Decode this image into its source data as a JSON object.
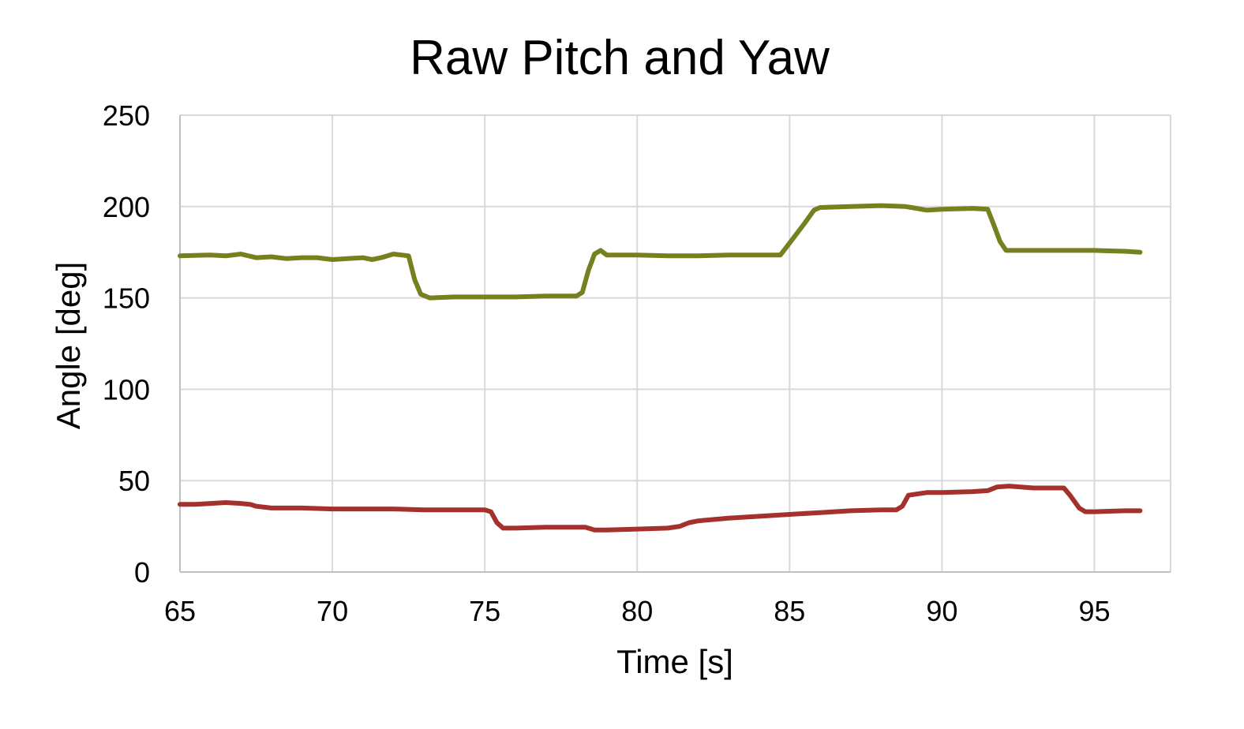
{
  "chart_data": {
    "type": "line",
    "title": "Raw Pitch and Yaw",
    "xlabel": "Time [s]",
    "ylabel": "Angle [deg]",
    "xlim": [
      65,
      97.5
    ],
    "ylim": [
      0,
      250
    ],
    "xticks": [
      65,
      70,
      75,
      80,
      85,
      90,
      95
    ],
    "yticks": [
      0,
      50,
      100,
      150,
      200,
      250
    ],
    "grid": true,
    "legend": "none",
    "series": [
      {
        "color": "#76801e",
        "x": [
          65,
          66,
          66.5,
          67,
          67.5,
          68,
          68.5,
          69,
          69.5,
          70,
          70.5,
          71,
          71.3,
          71.6,
          72,
          72.5,
          72.7,
          72.9,
          73.2,
          74,
          75,
          76,
          77,
          78,
          78.2,
          78.4,
          78.6,
          78.8,
          79,
          80,
          81,
          82,
          83,
          84,
          84.7,
          85,
          85.5,
          85.8,
          86,
          87,
          88,
          88.8,
          89,
          89.5,
          90,
          91,
          91.5,
          91.7,
          91.9,
          92.1,
          92.5,
          93,
          94,
          95,
          96,
          96.5
        ],
        "y": [
          173,
          173.5,
          173,
          174,
          172,
          172.5,
          171.5,
          172,
          172,
          171,
          171.5,
          172,
          171,
          172,
          174,
          173,
          160,
          152,
          150,
          150.5,
          150.5,
          150.5,
          151,
          151,
          153,
          165,
          174,
          176,
          173.5,
          173.5,
          173,
          173,
          173.5,
          173.5,
          173.5,
          180,
          191,
          198,
          199.5,
          200,
          200.5,
          200,
          199.5,
          198,
          198.5,
          199,
          198.5,
          190,
          181,
          176,
          176,
          176,
          176,
          176,
          175.5,
          175
        ]
      },
      {
        "color": "#a5312c",
        "x": [
          65,
          65.5,
          66,
          66.5,
          67,
          67.3,
          67.5,
          68,
          69,
          70,
          71,
          72,
          73,
          74,
          75,
          75.2,
          75.4,
          75.6,
          76,
          77,
          78,
          78.3,
          78.6,
          79,
          80,
          81,
          81.4,
          81.7,
          82,
          83,
          84,
          85,
          86,
          87,
          88,
          88.5,
          88.7,
          88.9,
          89.5,
          90,
          91,
          91.5,
          91.8,
          92.2,
          93,
          94,
          94.2,
          94.5,
          94.7,
          95,
          96,
          96.5
        ],
        "y": [
          37,
          37,
          37.5,
          38,
          37.5,
          37,
          36,
          35,
          35,
          34.5,
          34.5,
          34.5,
          34,
          34,
          34,
          33,
          27,
          24,
          24,
          24.5,
          24.5,
          24.5,
          23,
          23,
          23.5,
          24,
          25,
          27,
          28,
          29.5,
          30.5,
          31.5,
          32.5,
          33.5,
          34,
          34,
          36,
          42,
          43.5,
          43.5,
          44,
          44.5,
          46.5,
          47,
          46,
          46,
          42,
          35,
          33,
          33,
          33.5,
          33.5
        ]
      }
    ]
  }
}
